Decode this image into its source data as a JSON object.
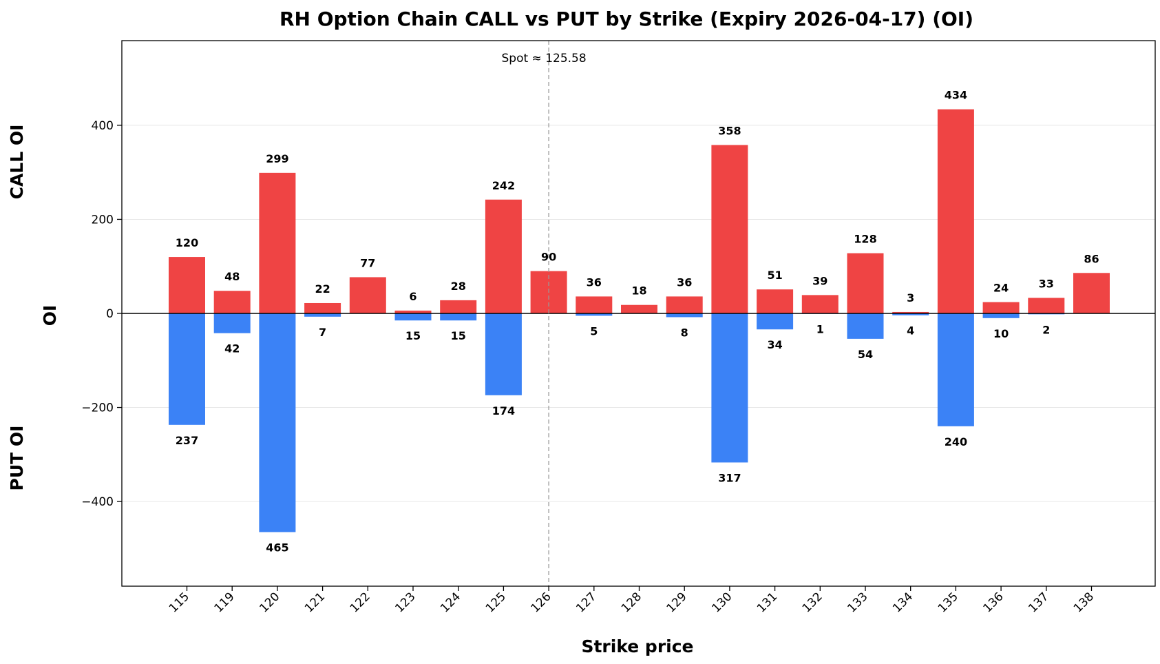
{
  "chart_data": {
    "type": "bar",
    "title": "RH Option Chain CALL vs PUT by Strike (Expiry 2026-04-17) (OI)",
    "xlabel": "Strike price",
    "ylabel": "OI",
    "side_labels": {
      "top": "CALL OI",
      "bottom": "PUT OI"
    },
    "categories": [
      "115",
      "119",
      "120",
      "121",
      "122",
      "123",
      "124",
      "125",
      "126",
      "127",
      "128",
      "129",
      "130",
      "131",
      "132",
      "133",
      "134",
      "135",
      "136",
      "137",
      "138"
    ],
    "series": [
      {
        "color": "#ef4444",
        "values": [
          120,
          48,
          299,
          22,
          77,
          6,
          28,
          242,
          90,
          36,
          18,
          36,
          358,
          51,
          39,
          128,
          3,
          434,
          24,
          33,
          86
        ]
      },
      {
        "color": "#3b82f6",
        "values": [
          -237,
          -42,
          -465,
          -7,
          0,
          -15,
          -15,
          -174,
          0,
          -5,
          0,
          -8,
          -317,
          -34,
          -1,
          -54,
          -4,
          -240,
          -10,
          -2,
          0
        ]
      }
    ],
    "data_labels": {
      "call": [
        "120",
        "48",
        "299",
        "22",
        "77",
        "6",
        "28",
        "242",
        "90",
        "36",
        "18",
        "36",
        "358",
        "51",
        "39",
        "128",
        "3",
        "434",
        "24",
        "33",
        "86"
      ],
      "put": [
        "237",
        "42",
        "465",
        "7",
        "",
        "15",
        "15",
        "174",
        "",
        "5",
        "",
        "8",
        "317",
        "34",
        "1",
        "54",
        "4",
        "240",
        "10",
        "2",
        ""
      ]
    },
    "yticks": [
      -400,
      -200,
      0,
      200,
      400
    ],
    "ytick_labels": [
      "−400",
      "−200",
      "0",
      "200",
      "400"
    ],
    "ylim": [
      -580,
      580
    ],
    "spot": {
      "value": 125.58,
      "label": "Spot ≈ 125.58",
      "category_index": 8
    },
    "grid": "y"
  }
}
